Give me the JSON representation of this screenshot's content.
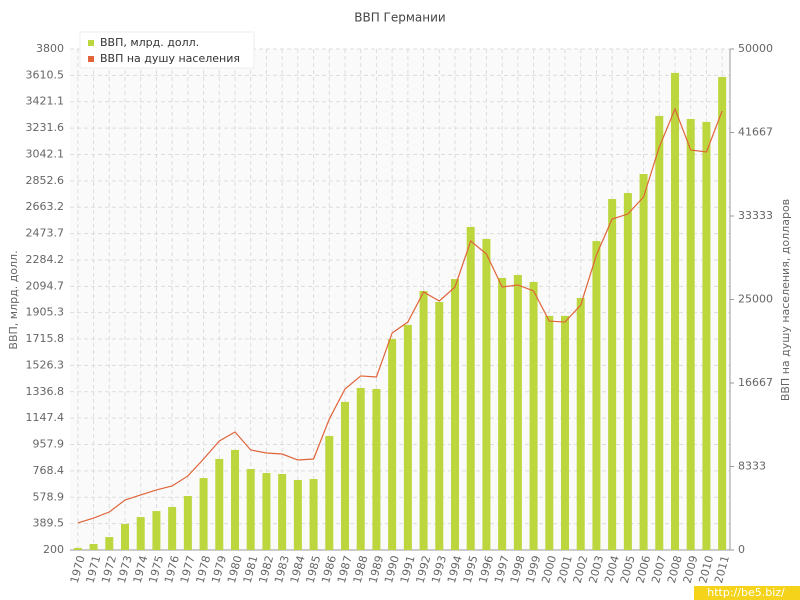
{
  "chart_data": {
    "type": "bar-line",
    "title": "ВВП Германии",
    "y_label": "ВВП, млрд. долл.",
    "y2_label": "ВВП на душу населения, долларов",
    "watermark": "http://be5.biz/",
    "categories": [
      "1970",
      "1971",
      "1972",
      "1973",
      "1974",
      "1975",
      "1976",
      "1977",
      "1978",
      "1979",
      "1980",
      "1981",
      "1982",
      "1983",
      "1984",
      "1985",
      "1986",
      "1987",
      "1988",
      "1989",
      "1990",
      "1991",
      "1992",
      "1993",
      "1994",
      "1995",
      "1996",
      "1997",
      "1998",
      "1999",
      "2000",
      "2001",
      "2002",
      "2003",
      "2004",
      "2005",
      "2006",
      "2007",
      "2008",
      "2009",
      "2010",
      "2011"
    ],
    "series": [
      {
        "name": "ВВП, млрд. долл.",
        "color": "#bcd63e",
        "kind": "bar",
        "values": [
          215,
          243,
          293,
          387,
          437,
          480,
          509,
          588,
          717,
          854,
          919,
          782,
          753,
          746,
          703,
          710,
          1019,
          1264,
          1364,
          1357,
          1716,
          1817,
          2061,
          1982,
          2147,
          2521,
          2435,
          2155,
          2176,
          2126,
          1882,
          1882,
          2011,
          2420,
          2722,
          2765,
          2902,
          3319,
          3628,
          3297,
          3276,
          3599
        ]
      },
      {
        "name": "ВВП на душу населения",
        "color": "#e0643a",
        "kind": "line",
        "axis": "y2",
        "values": [
          2700,
          3190,
          3790,
          4990,
          5490,
          5990,
          6390,
          7390,
          9080,
          10880,
          11780,
          9980,
          9680,
          9580,
          8980,
          9080,
          13070,
          16070,
          17370,
          17270,
          21660,
          22750,
          25750,
          24850,
          26250,
          30840,
          29540,
          26250,
          26450,
          25850,
          22850,
          22750,
          24450,
          29440,
          33030,
          33530,
          35230,
          40220,
          44010,
          39920,
          39720,
          43810
        ]
      }
    ],
    "ylim": [
      200,
      3800
    ],
    "yticks": [
      200,
      389.5,
      578.9,
      768.4,
      957.9,
      1147.4,
      1336.8,
      1526.3,
      1715.8,
      1905.3,
      2094.7,
      2284.2,
      2473.7,
      2663.2,
      2852.6,
      3042.1,
      3231.6,
      3421.1,
      3610.5,
      3800
    ],
    "y2lim": [
      0,
      50000
    ],
    "y2ticks": [
      0,
      8333,
      16667,
      25000,
      33333,
      41667,
      50000
    ],
    "grid": true,
    "legend": "top-left"
  }
}
